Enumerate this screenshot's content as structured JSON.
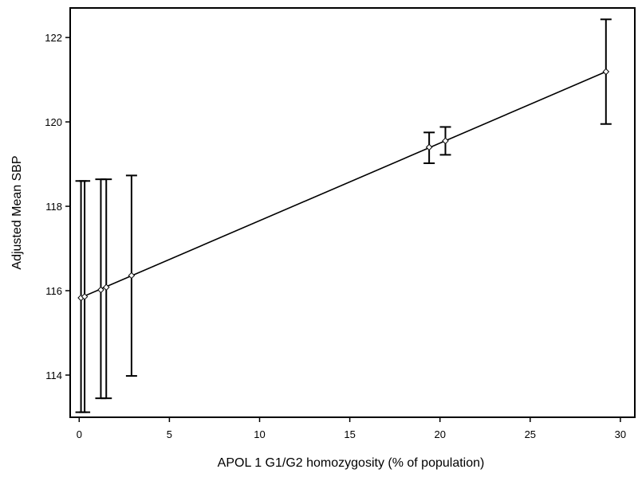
{
  "chart_data": {
    "type": "scatter",
    "xlabel": "APOL 1 G1/G2 homozygosity (% of population)",
    "ylabel": "Adjusted Mean SBP",
    "xlim": [
      -0.5,
      30.8
    ],
    "ylim": [
      113.0,
      122.7
    ],
    "xticks": [
      0,
      5,
      10,
      15,
      20,
      25,
      30
    ],
    "yticks": [
      114,
      116,
      118,
      120,
      122
    ],
    "grid": false,
    "points": [
      {
        "x": 0.1,
        "y": 115.83,
        "lo": 113.12,
        "hi": 118.6
      },
      {
        "x": 0.3,
        "y": 115.86,
        "lo": 113.12,
        "hi": 118.6
      },
      {
        "x": 1.2,
        "y": 116.02,
        "lo": 113.45,
        "hi": 118.64
      },
      {
        "x": 1.5,
        "y": 116.08,
        "lo": 113.45,
        "hi": 118.64
      },
      {
        "x": 2.9,
        "y": 116.36,
        "lo": 113.98,
        "hi": 118.73
      },
      {
        "x": 19.4,
        "y": 119.4,
        "lo": 119.02,
        "hi": 119.75
      },
      {
        "x": 20.3,
        "y": 119.55,
        "lo": 119.22,
        "hi": 119.88
      },
      {
        "x": 29.2,
        "y": 121.19,
        "lo": 119.95,
        "hi": 122.43
      }
    ],
    "fit_line": {
      "x": [
        0.0,
        29.2
      ],
      "y": [
        115.82,
        121.19
      ]
    }
  }
}
